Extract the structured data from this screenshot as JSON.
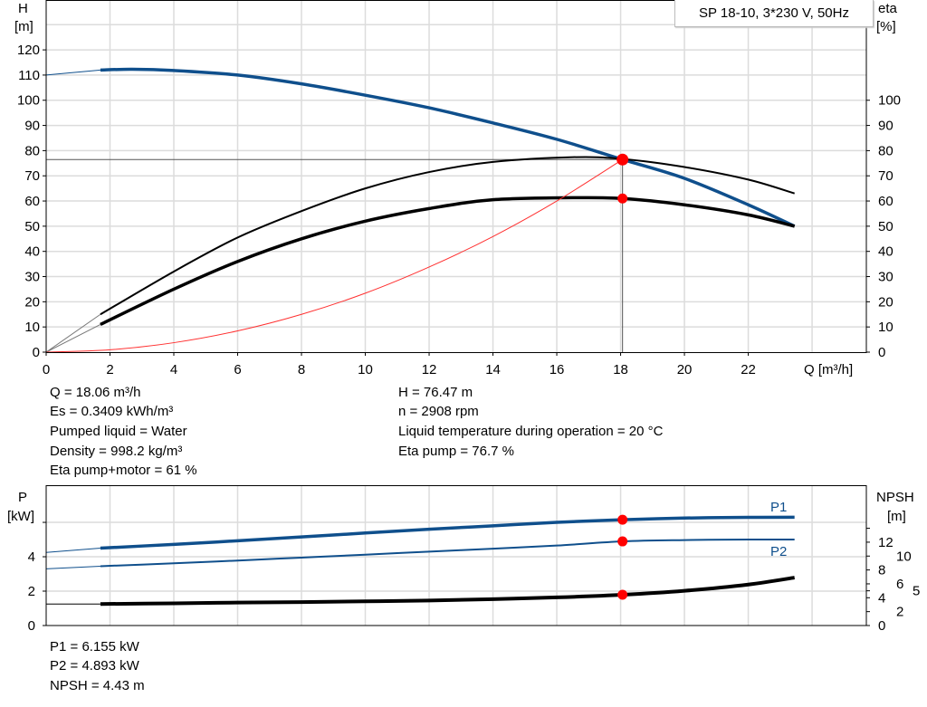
{
  "chart_data": [
    {
      "type": "line",
      "title": "SP 18-10, 3*230 V, 50Hz",
      "xlabel": "Q [m³/h]",
      "ylabel": "H\n[m]",
      "ylabel_top": "H",
      "ylabel_unit": "[m]",
      "y2label_top": "eta",
      "y2label_unit": "[%]",
      "xlim": [
        0,
        25.7
      ],
      "ylim": [
        0,
        139.8
      ],
      "y2lim": [
        0,
        139.8
      ],
      "grid": true,
      "x_ticks": [
        0,
        2,
        4,
        6,
        8,
        10,
        12,
        14,
        16,
        18,
        20,
        22
      ],
      "y_ticks": [
        0,
        10,
        20,
        30,
        40,
        50,
        60,
        70,
        80,
        90,
        100,
        110,
        120
      ],
      "y2_ticks": [
        0,
        10,
        20,
        30,
        40,
        50,
        60,
        70,
        80,
        90,
        100
      ],
      "series": [
        {
          "key": "H",
          "axis": "left",
          "color": "#0f4f8c",
          "x": [
            1.7,
            2.7,
            4,
            6,
            8,
            10,
            12,
            14,
            16,
            18.06,
            20,
            22,
            23.45
          ],
          "y": [
            112,
            112.3,
            111.8,
            110,
            106.5,
            102,
            97,
            91,
            84.5,
            76.47,
            69,
            58.5,
            50
          ],
          "extrapolated": {
            "x": [
              0,
              1.7
            ],
            "y": [
              110,
              112
            ]
          }
        },
        {
          "key": "eta_pump",
          "axis": "right",
          "color": "#000000",
          "x": [
            1.7,
            4,
            6,
            8,
            10,
            12,
            14,
            16.5,
            18.06,
            20,
            22,
            23.45
          ],
          "y": [
            15,
            32,
            45.5,
            56,
            65,
            71.5,
            75.5,
            77.4,
            76.7,
            73.5,
            68.5,
            63
          ],
          "extrapolated": {
            "x": [
              0,
              1.7
            ],
            "y": [
              0,
              15
            ]
          }
        },
        {
          "key": "eta_pump_motor",
          "axis": "right",
          "color": "#000000",
          "x": [
            1.7,
            4,
            6,
            8,
            10,
            12,
            14,
            16.5,
            18.06,
            20,
            22,
            23.45
          ],
          "y": [
            11,
            25,
            36,
            45,
            52,
            57,
            60.5,
            61.3,
            61,
            58.5,
            54.5,
            50
          ],
          "extrapolated": {
            "x": [
              0,
              1.7
            ],
            "y": [
              0,
              11
            ]
          }
        },
        {
          "key": "system_curve",
          "axis": "left",
          "color": "#ff3030",
          "x": [
            0,
            2,
            4,
            6,
            8,
            10,
            12,
            14,
            16,
            18.06
          ],
          "y": [
            0,
            0.94,
            3.75,
            8.44,
            15.0,
            23.4,
            33.8,
            45.9,
            60.0,
            76.47
          ]
        }
      ],
      "operating_points": [
        {
          "x": 18.06,
          "y": 76.47
        },
        {
          "x": 18.06,
          "y": 61
        }
      ],
      "legend_position": "top-right"
    },
    {
      "type": "line",
      "ylabel_top": "P",
      "ylabel_unit": "[kW]",
      "y2label_top": "NPSH",
      "y2label_unit": "[m]",
      "xlim": [
        0,
        25.7
      ],
      "ylim": [
        0,
        8.16
      ],
      "y2lim": [
        0,
        20.2
      ],
      "grid": true,
      "y_ticks": [
        0,
        2,
        4,
        6
      ],
      "y_tick_labels": [
        "0",
        "2",
        "4",
        ""
      ],
      "y2_ticks": [
        0,
        2,
        4,
        5,
        6,
        8,
        10,
        12,
        14
      ],
      "y2_tick_labels": [
        "0",
        "2",
        "4",
        "5",
        "6",
        "8",
        "10",
        "12",
        ""
      ],
      "series": [
        {
          "name": "P1",
          "axis": "left",
          "color": "#0f4f8c",
          "x": [
            1.7,
            4,
            6,
            8,
            10,
            12,
            14,
            16,
            18.06,
            20,
            22,
            23.45
          ],
          "y": [
            4.5,
            4.72,
            4.93,
            5.15,
            5.38,
            5.6,
            5.8,
            6.0,
            6.155,
            6.25,
            6.29,
            6.3
          ],
          "extrapolated": {
            "x": [
              0,
              1.7
            ],
            "y": [
              4.25,
              4.5
            ]
          }
        },
        {
          "name": "P2",
          "axis": "left",
          "color": "#0f4f8c",
          "x": [
            1.7,
            4,
            6,
            8,
            10,
            12,
            14,
            16,
            18.06,
            20,
            22,
            23.45
          ],
          "y": [
            3.45,
            3.62,
            3.78,
            3.95,
            4.12,
            4.3,
            4.47,
            4.65,
            4.893,
            4.97,
            5.0,
            5.0
          ],
          "extrapolated": {
            "x": [
              0,
              1.7
            ],
            "y": [
              3.3,
              3.45
            ]
          }
        },
        {
          "key": "NPSH",
          "axis": "right",
          "color": "#000000",
          "x": [
            1.7,
            4,
            6,
            8,
            10,
            12,
            14,
            16,
            18.06,
            20,
            22,
            23.45
          ],
          "y": [
            3.1,
            3.2,
            3.3,
            3.38,
            3.48,
            3.6,
            3.8,
            4.05,
            4.43,
            5.0,
            5.9,
            6.9
          ],
          "extrapolated": {
            "x": [
              0,
              1.7
            ],
            "y": [
              3.1,
              3.1
            ]
          }
        }
      ],
      "operating_points": [
        {
          "axis": "left",
          "x": 18.06,
          "y": 6.155
        },
        {
          "axis": "left",
          "x": 18.06,
          "y": 4.893
        },
        {
          "axis": "right",
          "x": 18.06,
          "y": 4.43
        }
      ]
    }
  ],
  "results_left": [
    "Q = 18.06 m³/h",
    "Es = 0.3409 kWh/m³",
    "Pumped liquid = Water",
    "Density = 998.2 kg/m³",
    "Eta pump+motor = 61 %"
  ],
  "results_right": [
    "H = 76.47 m",
    "n = 2908 rpm",
    "Liquid temperature during operation = 20 °C",
    "Eta pump = 76.7 %"
  ],
  "power_results": [
    "P1 = 6.155 kW",
    "P2 = 4.893 kW",
    "NPSH = 4.43 m"
  ]
}
